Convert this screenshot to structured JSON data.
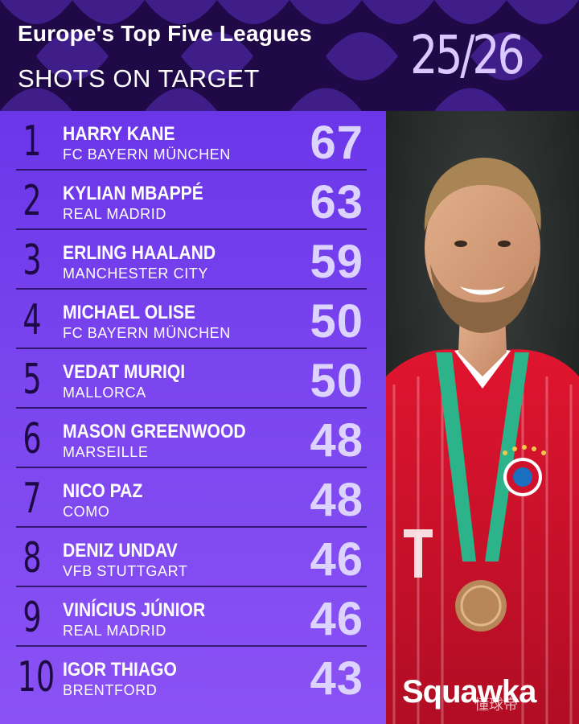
{
  "header": {
    "title": "Europe's Top Five Leagues",
    "subtitle": "SHOTS ON TARGET",
    "season": "25/26"
  },
  "brand": "Squawka",
  "watermark": "懂球帝",
  "colors": {
    "header_bg": "#1f0a47",
    "list_bg": "#7b45ef",
    "rank_text": "#1d0a45",
    "value_text": "#ddd3ff",
    "kit_red": "#d0112b"
  },
  "chart_data": {
    "type": "table",
    "title": "Europe's Top Five Leagues",
    "subtitle": "SHOTS ON TARGET",
    "columns": [
      "rank",
      "player",
      "club",
      "shots_on_target"
    ],
    "rows": [
      {
        "rank": "1",
        "player": "HARRY KANE",
        "club": "FC BAYERN MÜNCHEN",
        "shots_on_target": "67"
      },
      {
        "rank": "2",
        "player": "KYLIAN MBAPPÉ",
        "club": "REAL MADRID",
        "shots_on_target": "63"
      },
      {
        "rank": "3",
        "player": "ERLING HAALAND",
        "club": "MANCHESTER CITY",
        "shots_on_target": "59"
      },
      {
        "rank": "4",
        "player": "MICHAEL OLISE",
        "club": "FC BAYERN MÜNCHEN",
        "shots_on_target": "50"
      },
      {
        "rank": "5",
        "player": "VEDAT MURIQI",
        "club": "MALLORCA",
        "shots_on_target": "50"
      },
      {
        "rank": "6",
        "player": "MASON GREENWOOD",
        "club": "MARSEILLE",
        "shots_on_target": "48"
      },
      {
        "rank": "7",
        "player": "NICO PAZ",
        "club": "COMO",
        "shots_on_target": "48"
      },
      {
        "rank": "8",
        "player": "DENIZ UNDAV",
        "club": "VFB STUTTGART",
        "shots_on_target": "46"
      },
      {
        "rank": "9",
        "player": "VINÍCIUS JÚNIOR",
        "club": "REAL MADRID",
        "shots_on_target": "46"
      },
      {
        "rank": "10",
        "player": "IGOR THIAGO",
        "club": "BRENTFORD",
        "shots_on_target": "43"
      }
    ]
  }
}
